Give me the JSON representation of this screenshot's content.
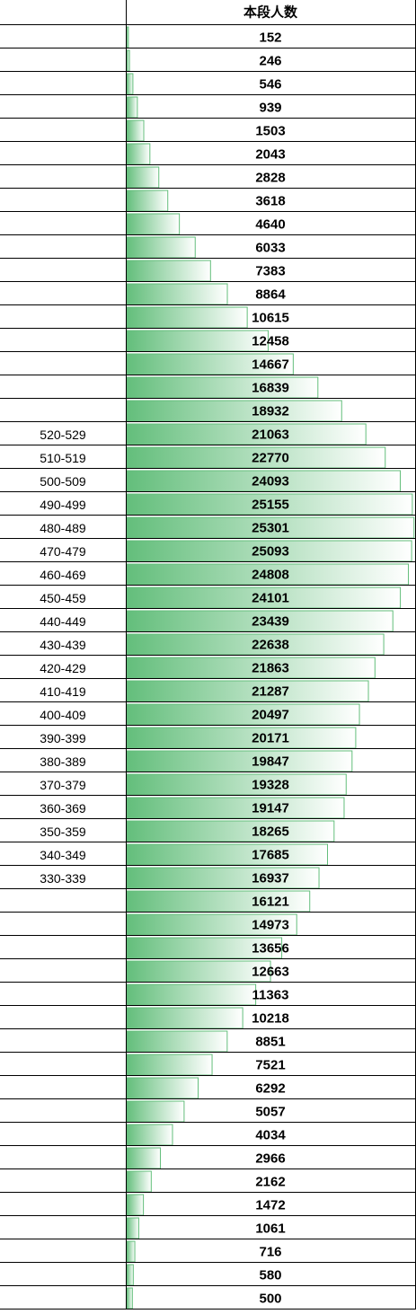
{
  "chart_data": {
    "type": "bar",
    "orientation": "horizontal",
    "column_header": "本段人数",
    "categories": [
      null,
      null,
      null,
      null,
      null,
      null,
      null,
      null,
      null,
      null,
      null,
      null,
      null,
      null,
      null,
      null,
      null,
      "520-529",
      "510-519",
      "500-509",
      "490-499",
      "480-489",
      "470-479",
      "460-469",
      "450-459",
      "440-449",
      "430-439",
      "420-429",
      "410-419",
      "400-409",
      "390-399",
      "380-389",
      "370-379",
      "360-369",
      "350-359",
      "340-349",
      "330-339",
      null,
      null,
      null,
      null,
      null,
      null,
      null,
      null,
      null,
      null,
      null,
      null,
      null,
      null,
      null,
      null,
      null,
      null
    ],
    "values": [
      152,
      246,
      546,
      939,
      1503,
      2043,
      2828,
      3618,
      4640,
      6033,
      7383,
      8864,
      10615,
      12458,
      14667,
      16839,
      18932,
      21063,
      22770,
      24093,
      25155,
      25301,
      25093,
      24808,
      24101,
      23439,
      22638,
      21863,
      21287,
      20497,
      20171,
      19847,
      19328,
      19147,
      18265,
      17685,
      16937,
      16121,
      14973,
      13656,
      12663,
      11363,
      10218,
      8851,
      7521,
      6292,
      5057,
      4034,
      2966,
      2162,
      1472,
      1061,
      716,
      580,
      500
    ],
    "xlim": [
      0,
      25400
    ],
    "color": "#63be7b"
  }
}
